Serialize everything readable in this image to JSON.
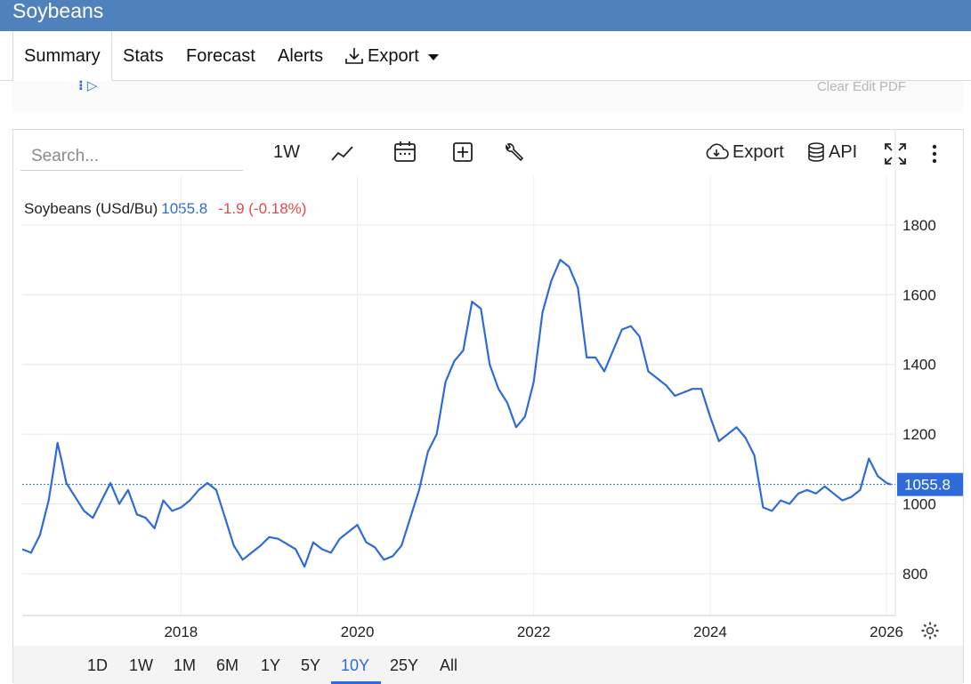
{
  "header": {
    "title": "Soybeans"
  },
  "tabs": [
    {
      "label": "Summary"
    },
    {
      "label": "Stats"
    },
    {
      "label": "Forecast"
    },
    {
      "label": "Alerts"
    },
    {
      "label": "Export"
    }
  ],
  "subbar": {
    "right_text": "Clear Edit PDF"
  },
  "toolbar": {
    "search_placeholder": "Search...",
    "interval": "1W",
    "export_label": "Export",
    "api_label": "API"
  },
  "legend": {
    "name": "Soybeans (USd/Bu)",
    "price": "1055.8",
    "change": "-1.9 (-0.18%)"
  },
  "ranges": [
    "1D",
    "1W",
    "1M",
    "6M",
    "1Y",
    "5Y",
    "10Y",
    "25Y",
    "All"
  ],
  "active_range": "10Y",
  "colors": {
    "line": "#2f6bd8",
    "header": "#4f82bd",
    "negative": "#e04a4a"
  },
  "chart_data": {
    "type": "line",
    "title": "",
    "xlabel": "",
    "ylabel": "",
    "x_ticks": [
      "2018",
      "2020",
      "2022",
      "2024",
      "2026"
    ],
    "y_ticks": [
      800,
      1000,
      1200,
      1400,
      1600,
      1800
    ],
    "xlim": [
      2016.2,
      2026.1
    ],
    "ylim": [
      680,
      1940
    ],
    "last_value": 1055.8,
    "last_value_label": "1055.8",
    "series": [
      {
        "name": "Soybeans (USd/Bu)",
        "points": [
          [
            2016.2,
            870
          ],
          [
            2016.3,
            860
          ],
          [
            2016.4,
            910
          ],
          [
            2016.5,
            1010
          ],
          [
            2016.55,
            1090
          ],
          [
            2016.6,
            1175
          ],
          [
            2016.65,
            1120
          ],
          [
            2016.7,
            1060
          ],
          [
            2016.8,
            1020
          ],
          [
            2016.9,
            980
          ],
          [
            2017.0,
            960
          ],
          [
            2017.1,
            1010
          ],
          [
            2017.2,
            1060
          ],
          [
            2017.3,
            1000
          ],
          [
            2017.4,
            1040
          ],
          [
            2017.5,
            970
          ],
          [
            2017.6,
            960
          ],
          [
            2017.7,
            930
          ],
          [
            2017.8,
            1010
          ],
          [
            2017.9,
            980
          ],
          [
            2018.0,
            990
          ],
          [
            2018.1,
            1010
          ],
          [
            2018.2,
            1040
          ],
          [
            2018.3,
            1060
          ],
          [
            2018.4,
            1040
          ],
          [
            2018.5,
            960
          ],
          [
            2018.6,
            880
          ],
          [
            2018.7,
            840
          ],
          [
            2018.8,
            860
          ],
          [
            2018.9,
            880
          ],
          [
            2019.0,
            905
          ],
          [
            2019.1,
            900
          ],
          [
            2019.2,
            885
          ],
          [
            2019.3,
            870
          ],
          [
            2019.4,
            820
          ],
          [
            2019.5,
            890
          ],
          [
            2019.6,
            870
          ],
          [
            2019.7,
            860
          ],
          [
            2019.8,
            900
          ],
          [
            2019.9,
            920
          ],
          [
            2020.0,
            940
          ],
          [
            2020.1,
            890
          ],
          [
            2020.2,
            875
          ],
          [
            2020.3,
            840
          ],
          [
            2020.4,
            850
          ],
          [
            2020.5,
            880
          ],
          [
            2020.6,
            960
          ],
          [
            2020.7,
            1040
          ],
          [
            2020.8,
            1150
          ],
          [
            2020.9,
            1200
          ],
          [
            2021.0,
            1350
          ],
          [
            2021.1,
            1410
          ],
          [
            2021.2,
            1440
          ],
          [
            2021.3,
            1580
          ],
          [
            2021.4,
            1560
          ],
          [
            2021.5,
            1400
          ],
          [
            2021.6,
            1330
          ],
          [
            2021.7,
            1290
          ],
          [
            2021.8,
            1220
          ],
          [
            2021.9,
            1250
          ],
          [
            2022.0,
            1350
          ],
          [
            2022.1,
            1550
          ],
          [
            2022.2,
            1640
          ],
          [
            2022.3,
            1700
          ],
          [
            2022.4,
            1680
          ],
          [
            2022.5,
            1620
          ],
          [
            2022.6,
            1420
          ],
          [
            2022.7,
            1420
          ],
          [
            2022.8,
            1380
          ],
          [
            2022.9,
            1440
          ],
          [
            2023.0,
            1500
          ],
          [
            2023.1,
            1510
          ],
          [
            2023.2,
            1480
          ],
          [
            2023.3,
            1380
          ],
          [
            2023.4,
            1360
          ],
          [
            2023.5,
            1340
          ],
          [
            2023.6,
            1310
          ],
          [
            2023.7,
            1320
          ],
          [
            2023.8,
            1330
          ],
          [
            2023.9,
            1330
          ],
          [
            2024.0,
            1250
          ],
          [
            2024.1,
            1180
          ],
          [
            2024.2,
            1200
          ],
          [
            2024.3,
            1220
          ],
          [
            2024.4,
            1190
          ],
          [
            2024.5,
            1140
          ],
          [
            2024.6,
            990
          ],
          [
            2024.7,
            980
          ],
          [
            2024.8,
            1010
          ],
          [
            2024.9,
            1000
          ],
          [
            2025.0,
            1030
          ],
          [
            2025.1,
            1040
          ],
          [
            2025.2,
            1030
          ],
          [
            2025.3,
            1050
          ],
          [
            2025.4,
            1030
          ],
          [
            2025.5,
            1010
          ],
          [
            2025.6,
            1020
          ],
          [
            2025.7,
            1040
          ],
          [
            2025.8,
            1130
          ],
          [
            2025.9,
            1080
          ],
          [
            2026.0,
            1060
          ],
          [
            2026.05,
            1055.8
          ]
        ]
      }
    ]
  }
}
